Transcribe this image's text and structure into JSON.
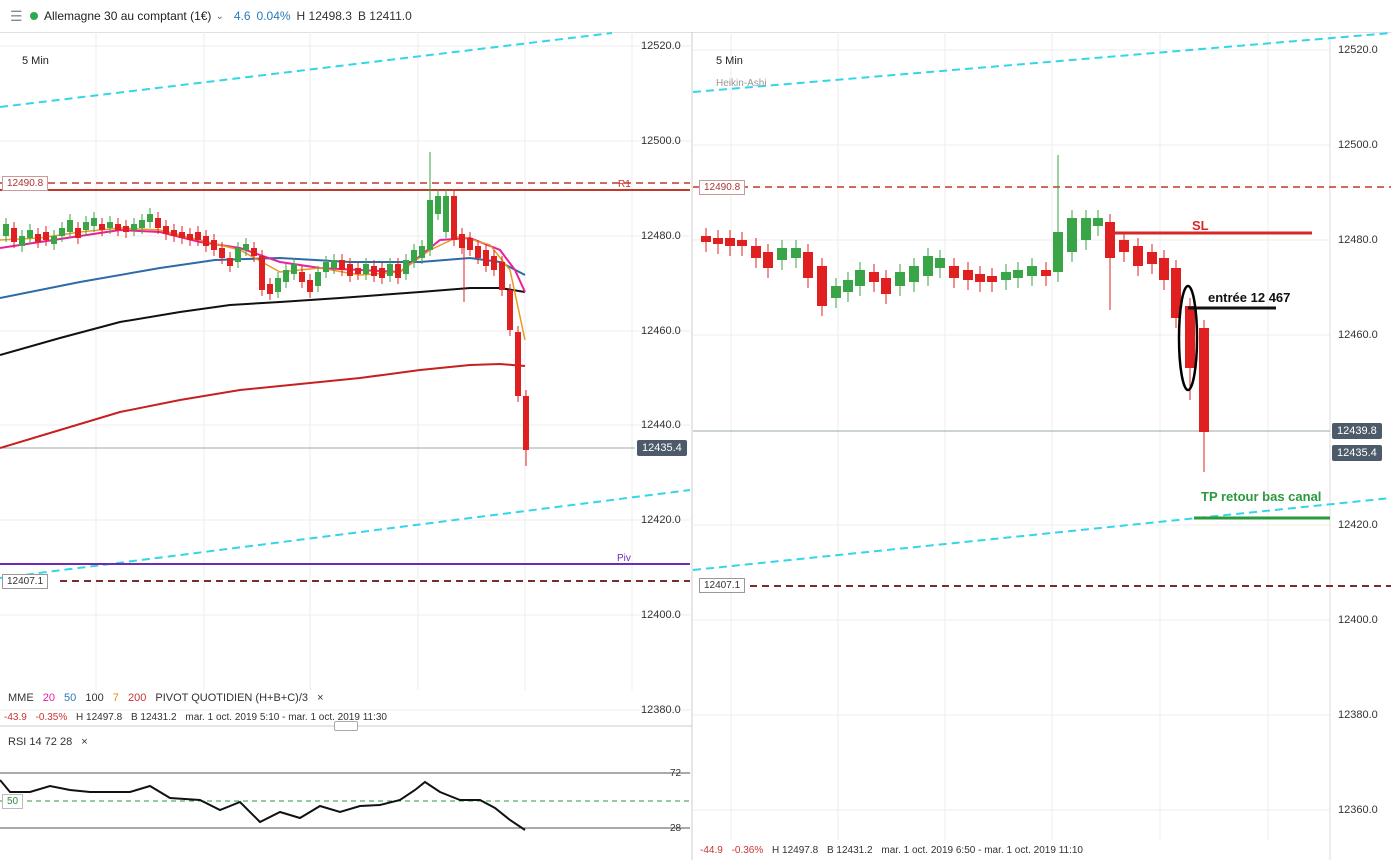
{
  "header": {
    "instrument": "Allemagne 30 au comptant (1€)",
    "change": "4.6",
    "change_pct": "0.04%",
    "high": "H 12498.3",
    "bid": "B 12411.0"
  },
  "left": {
    "timeframe": "5 Min",
    "axis": [
      "12520.0",
      "12500.0",
      "12480.0",
      "12460.0",
      "12440.0",
      "12420.0",
      "12400.0",
      "12380.0"
    ],
    "price_tag": "12435.4",
    "r1_tag": "12490.8",
    "r1_label": "R1",
    "s_tag": "12407.1",
    "piv_label": "Piv",
    "indicators": {
      "mme": "MME",
      "p20": "20",
      "p50": "50",
      "p100": "100",
      "p7": "7",
      "p200": "200",
      "pivot": "PIVOT  QUOTIDIEN  (H+B+C)/3",
      "close": "×"
    },
    "stats": {
      "chg": "-43.9",
      "pct": "-0.35%",
      "high": "H 12497.8",
      "low": "B 12431.2",
      "range": "mar. 1 oct. 2019 5:10 - mar. 1 oct. 2019 11:30"
    },
    "rsi": {
      "label": "RSI  14  72  28",
      "close": "×",
      "l72": "72",
      "l28": "28",
      "l50": "50"
    }
  },
  "right": {
    "timeframe": "5 Min",
    "subtitle": "Heikin-Ashi",
    "axis": [
      "12520.0",
      "12500.0",
      "12480.0",
      "12460.0",
      "12420.0",
      "12400.0",
      "12380.0",
      "12360.0"
    ],
    "price_tag_1": "12439.8",
    "price_tag_2": "12435.4",
    "r1_tag": "12490.8",
    "s_tag": "12407.1",
    "sl_label": "SL",
    "entry_label": "entrée  12 467",
    "tp_label": "TP retour bas canal",
    "stats": {
      "chg": "-44.9",
      "pct": "-0.36%",
      "high": "H 12497.8",
      "low": "B 12431.2",
      "range": "mar. 1 oct. 2019 6:50 - mar. 1 oct. 2019 11:10"
    }
  },
  "colors": {
    "up": "#3aa546",
    "down": "#e02020",
    "channel": "#33d6e8",
    "r1": "#c0392b",
    "pivot": "#6a2db3",
    "support": "#7a2d2d",
    "mme20": "#e8209a",
    "mme50": "#2f6aa8",
    "mme100": "#111111",
    "mme7": "#e89a20",
    "mme200": "#c62020"
  }
}
